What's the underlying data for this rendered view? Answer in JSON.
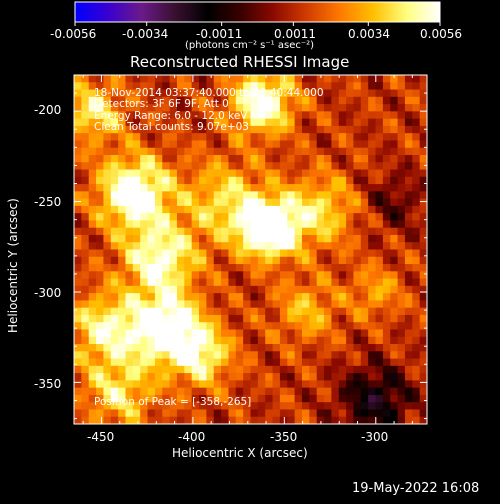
{
  "colorbar": {
    "tick_labels": [
      "-0.0056",
      "-0.0034",
      "-0.0011",
      "0.0011",
      "0.0034",
      "0.0056"
    ],
    "units": "(photons cm⁻² s⁻¹ asec⁻²)",
    "colormap": [
      "#0000ff",
      "#3a00d0",
      "#6a1a8a",
      "#3a1030",
      "#000000",
      "#3a0000",
      "#8c0a00",
      "#d23c00",
      "#ff7a00",
      "#ffc000",
      "#ffff80",
      "#ffffff"
    ]
  },
  "plot": {
    "title": "Reconstructed RHESSI Image",
    "xlabel": "Heliocentric X (arcsec)",
    "ylabel": "Heliocentric Y (arcsec)",
    "x_ticks": [
      "-450",
      "-400",
      "-350",
      "-300"
    ],
    "y_ticks": [
      "-200",
      "-250",
      "-300",
      "-350"
    ],
    "info_lines": [
      "18-Nov-2014 03:37:40.000 to 03:40:44.000",
      "Detectors: 3F 6F 9F, Att 0",
      "Energy Range: 6.0 - 12.0 keV",
      "Clean     Total counts: 9.07e+03"
    ],
    "peak_label": "Position of Peak = [-358,-265]"
  },
  "footer": {
    "timestamp": "19-May-2022 16:08"
  },
  "chart_data": {
    "type": "heatmap",
    "title": "Reconstructed RHESSI Image",
    "xlabel": "Heliocentric X (arcsec)",
    "ylabel": "Heliocentric Y (arcsec)",
    "xlim": [
      -465,
      -272
    ],
    "ylim": [
      -373,
      -180
    ],
    "x_ticks": [
      -450,
      -400,
      -350,
      -300
    ],
    "y_ticks": [
      -200,
      -250,
      -300,
      -350
    ],
    "color_range": [
      -0.0056,
      0.0056
    ],
    "peak": [
      -358,
      -265
    ],
    "sources": [
      {
        "x": -358,
        "y": -265,
        "amplitude": 1.0,
        "sigma": 11
      },
      {
        "x": -415,
        "y": -320,
        "amplitude": 0.85,
        "sigma": 13
      },
      {
        "x": -432,
        "y": -245,
        "amplitude": 0.8,
        "sigma": 14
      },
      {
        "x": -362,
        "y": -195,
        "amplitude": 0.75,
        "sigma": 12
      },
      {
        "x": -418,
        "y": -282,
        "amplitude": 0.65,
        "sigma": 14
      },
      {
        "x": -395,
        "y": -335,
        "amplitude": 0.55,
        "sigma": 12
      },
      {
        "x": -382,
        "y": -250,
        "amplitude": 0.45,
        "sigma": 16
      },
      {
        "x": -448,
        "y": -320,
        "amplitude": 0.55,
        "sigma": 14
      },
      {
        "x": -455,
        "y": -200,
        "amplitude": 0.5,
        "sigma": 12
      },
      {
        "x": -330,
        "y": -255,
        "amplitude": 0.45,
        "sigma": 14
      },
      {
        "x": -338,
        "y": -310,
        "amplitude": 0.35,
        "sigma": 12
      },
      {
        "x": -300,
        "y": -300,
        "amplitude": 0.3,
        "sigma": 10
      },
      {
        "x": -440,
        "y": -355,
        "amplitude": 0.45,
        "sigma": 14
      },
      {
        "x": -300,
        "y": -360,
        "amplitude": -0.5,
        "sigma": 14
      },
      {
        "x": -290,
        "y": -250,
        "amplitude": -0.25,
        "sigma": 12
      }
    ]
  }
}
